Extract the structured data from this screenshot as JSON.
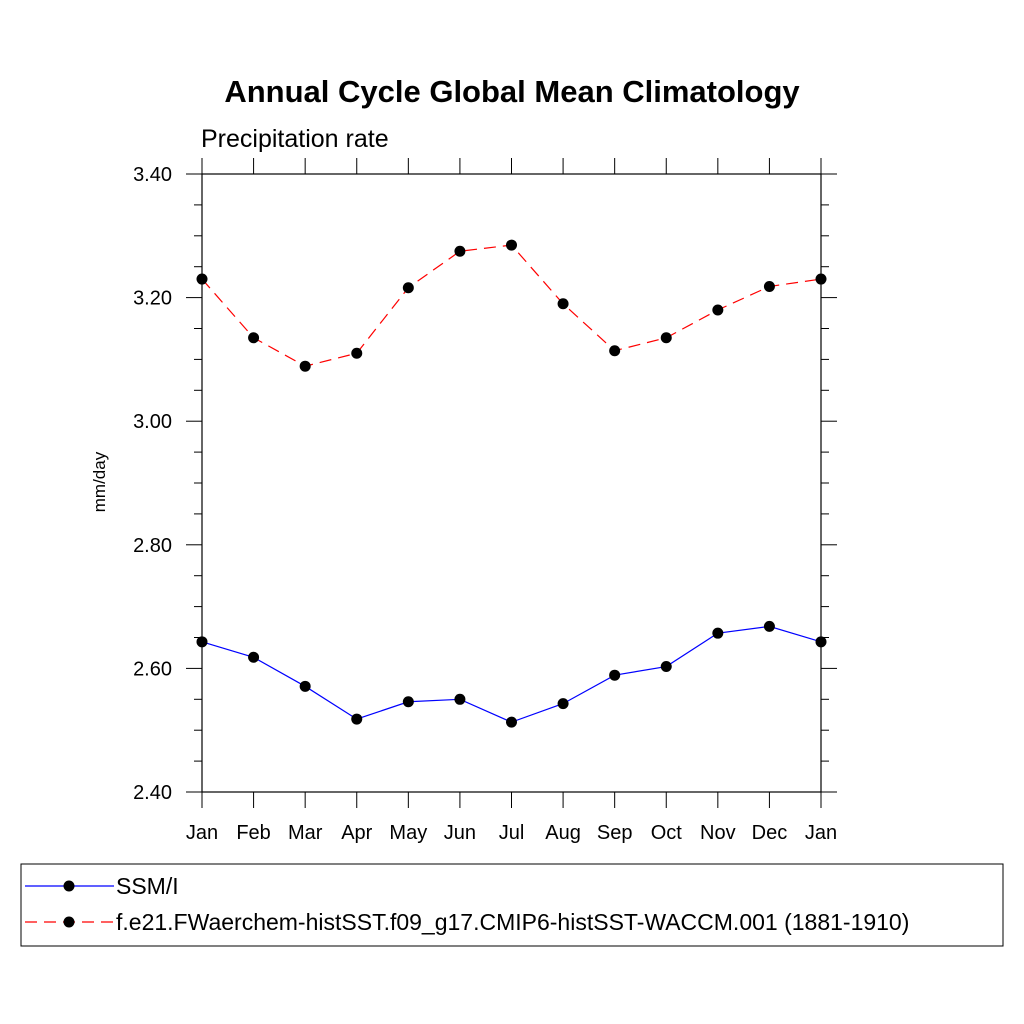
{
  "chart_data": {
    "type": "line",
    "title": "Annual Cycle Global Mean Climatology",
    "subtitle": "Precipitation rate",
    "ylabel": "mm/day",
    "xlabel": "",
    "categories": [
      "Jan",
      "Feb",
      "Mar",
      "Apr",
      "May",
      "Jun",
      "Jul",
      "Aug",
      "Sep",
      "Oct",
      "Nov",
      "Dec",
      "Jan"
    ],
    "ylim": [
      2.4,
      3.4
    ],
    "yticks": [
      "2.40",
      "2.60",
      "2.80",
      "3.00",
      "3.20",
      "3.40"
    ],
    "ytick_values": [
      2.4,
      2.6,
      2.8,
      3.0,
      3.2,
      3.4
    ],
    "y_minor_step": 0.05,
    "grid": false,
    "legend_position": "bottom",
    "series": [
      {
        "name": "SSM/I",
        "color": "#0000ff",
        "dash": "solid",
        "marker": "filled-circle",
        "values": [
          2.643,
          2.618,
          2.571,
          2.518,
          2.546,
          2.55,
          2.513,
          2.543,
          2.589,
          2.603,
          2.657,
          2.668,
          2.643
        ]
      },
      {
        "name": "f.e21.FWaerchem-histSST.f09_g17.CMIP6-histSST-WACCM.001 (1881-1910)",
        "color": "#ff0000",
        "dash": "dashed",
        "marker": "filled-circle",
        "values": [
          3.23,
          3.135,
          3.089,
          3.11,
          3.216,
          3.275,
          3.285,
          3.19,
          3.114,
          3.135,
          3.18,
          3.218,
          3.23
        ]
      }
    ]
  }
}
